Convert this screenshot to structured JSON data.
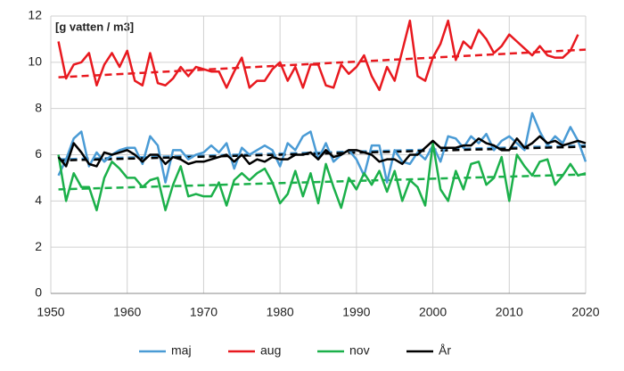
{
  "chart_data": {
    "type": "line",
    "annotation": "[g vatten / m3]",
    "x": [
      1951,
      1952,
      1953,
      1954,
      1955,
      1956,
      1957,
      1958,
      1959,
      1960,
      1961,
      1962,
      1963,
      1964,
      1965,
      1966,
      1967,
      1968,
      1969,
      1970,
      1971,
      1972,
      1973,
      1974,
      1975,
      1976,
      1977,
      1978,
      1979,
      1980,
      1981,
      1982,
      1983,
      1984,
      1985,
      1986,
      1987,
      1988,
      1989,
      1990,
      1991,
      1992,
      1993,
      1994,
      1995,
      1996,
      1997,
      1998,
      1999,
      2000,
      2001,
      2002,
      2003,
      2004,
      2005,
      2006,
      2007,
      2008,
      2009,
      2010,
      2011,
      2012,
      2013,
      2014,
      2015,
      2016,
      2017,
      2018,
      2019,
      2020
    ],
    "trend_x": [
      1951,
      2020
    ],
    "series": [
      {
        "name": "maj",
        "color": "#4a9bd5",
        "trend": [
          5.8,
          6.4
        ],
        "values": [
          5.1,
          5.8,
          6.7,
          7.0,
          5.5,
          6.1,
          5.7,
          6.0,
          6.2,
          6.3,
          6.3,
          5.6,
          6.8,
          6.4,
          4.8,
          6.2,
          6.2,
          5.8,
          6.0,
          6.1,
          6.4,
          6.1,
          6.5,
          5.4,
          6.3,
          6.0,
          6.2,
          6.4,
          6.2,
          5.5,
          6.5,
          6.2,
          6.8,
          7.0,
          5.8,
          6.5,
          5.7,
          6.0,
          6.2,
          5.8,
          5.1,
          6.4,
          6.4,
          4.8,
          6.2,
          5.7,
          5.6,
          6.1,
          5.8,
          6.4,
          5.7,
          6.8,
          6.7,
          6.3,
          6.8,
          6.5,
          6.9,
          6.2,
          6.6,
          6.8,
          6.5,
          6.2,
          7.8,
          7.0,
          6.4,
          6.8,
          6.5,
          7.2,
          6.6,
          5.7
        ]
      },
      {
        "name": "aug",
        "color": "#e8191f",
        "trend": [
          9.35,
          10.55
        ],
        "values": [
          10.9,
          9.3,
          9.9,
          10.0,
          10.4,
          9.0,
          9.9,
          10.4,
          9.8,
          10.5,
          9.2,
          9.0,
          10.4,
          9.1,
          9.0,
          9.3,
          9.8,
          9.4,
          9.8,
          9.7,
          9.6,
          9.6,
          8.9,
          9.6,
          10.2,
          8.9,
          9.2,
          9.2,
          9.7,
          10.0,
          9.2,
          9.8,
          8.9,
          9.9,
          9.9,
          9.0,
          8.9,
          9.9,
          9.5,
          9.8,
          10.3,
          9.4,
          8.8,
          9.8,
          9.2,
          10.5,
          11.8,
          9.4,
          9.2,
          10.2,
          10.8,
          11.8,
          10.1,
          10.9,
          10.6,
          11.4,
          11.0,
          10.4,
          10.7,
          11.2,
          10.9,
          10.6,
          10.3,
          10.7,
          10.3,
          10.2,
          10.2,
          10.5,
          11.2,
          null
        ]
      },
      {
        "name": "nov",
        "color": "#1bb04a",
        "trend": [
          4.5,
          5.15
        ],
        "values": [
          6.0,
          4.0,
          5.2,
          4.6,
          4.6,
          3.6,
          5.0,
          5.7,
          5.4,
          5.0,
          5.0,
          4.6,
          4.9,
          5.0,
          3.6,
          4.7,
          5.5,
          4.2,
          4.3,
          4.2,
          4.2,
          4.8,
          3.8,
          4.9,
          5.2,
          4.9,
          5.2,
          5.4,
          4.8,
          3.9,
          4.3,
          5.3,
          4.2,
          5.2,
          3.9,
          5.6,
          4.6,
          3.7,
          5.0,
          4.5,
          5.2,
          4.7,
          5.3,
          4.4,
          5.3,
          4.0,
          4.9,
          4.6,
          3.8,
          6.5,
          4.5,
          4.0,
          5.3,
          4.5,
          5.6,
          5.7,
          4.7,
          5.0,
          5.9,
          4.0,
          6.0,
          5.5,
          5.1,
          5.7,
          5.8,
          4.7,
          5.1,
          5.6,
          5.1,
          5.2
        ]
      },
      {
        "name": "År",
        "color": "#000000",
        "trend": [
          5.75,
          6.35
        ],
        "values": [
          5.9,
          5.5,
          6.5,
          6.1,
          5.6,
          5.5,
          6.1,
          6.0,
          6.1,
          6.2,
          6.0,
          5.7,
          6.0,
          6.0,
          5.6,
          5.9,
          5.8,
          5.6,
          5.7,
          5.7,
          5.8,
          5.9,
          6.0,
          5.7,
          6.0,
          5.6,
          5.8,
          5.7,
          5.9,
          5.8,
          5.8,
          6.0,
          6.0,
          6.1,
          5.8,
          6.2,
          5.9,
          6.0,
          6.2,
          6.2,
          6.1,
          6.0,
          5.7,
          5.8,
          5.8,
          5.6,
          6.0,
          6.0,
          6.3,
          6.6,
          6.3,
          6.3,
          6.3,
          6.4,
          6.4,
          6.7,
          6.5,
          6.4,
          6.2,
          6.2,
          6.7,
          6.3,
          6.5,
          6.8,
          6.5,
          6.6,
          6.4,
          6.5,
          6.6,
          6.5
        ]
      }
    ],
    "xlim": [
      1950,
      2020
    ],
    "xticks": [
      1950,
      1960,
      1970,
      1980,
      1990,
      2000,
      2010,
      2020
    ],
    "ylim": [
      0,
      12
    ],
    "yticks": [
      0,
      2,
      4,
      6,
      8,
      10,
      12
    ],
    "grid": true,
    "legend": "bottom"
  }
}
